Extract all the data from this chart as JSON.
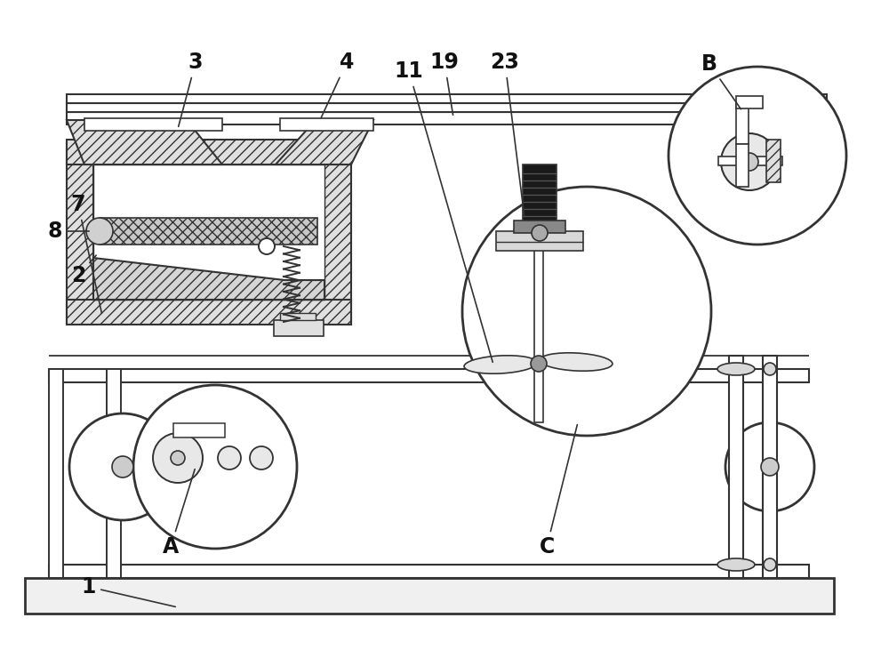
{
  "bg_color": "#ffffff",
  "line_color": "#333333",
  "figsize": [
    10.0,
    7.4
  ],
  "dpi": 100,
  "labels_info": [
    [
      "1",
      100,
      80,
      200,
      57
    ],
    [
      "2",
      88,
      430,
      110,
      455
    ],
    [
      "3",
      220,
      670,
      200,
      595
    ],
    [
      "4",
      390,
      670,
      360,
      605
    ],
    [
      "7",
      88,
      510,
      115,
      385
    ],
    [
      "8",
      62,
      480,
      103,
      480
    ],
    [
      "11",
      460,
      660,
      555,
      330
    ],
    [
      "19",
      500,
      670,
      510,
      608
    ],
    [
      "23",
      568,
      670,
      590,
      495
    ],
    [
      "A",
      192,
      125,
      220,
      215
    ],
    [
      "B",
      798,
      668,
      835,
      615
    ],
    [
      "C",
      615,
      125,
      650,
      265
    ]
  ]
}
